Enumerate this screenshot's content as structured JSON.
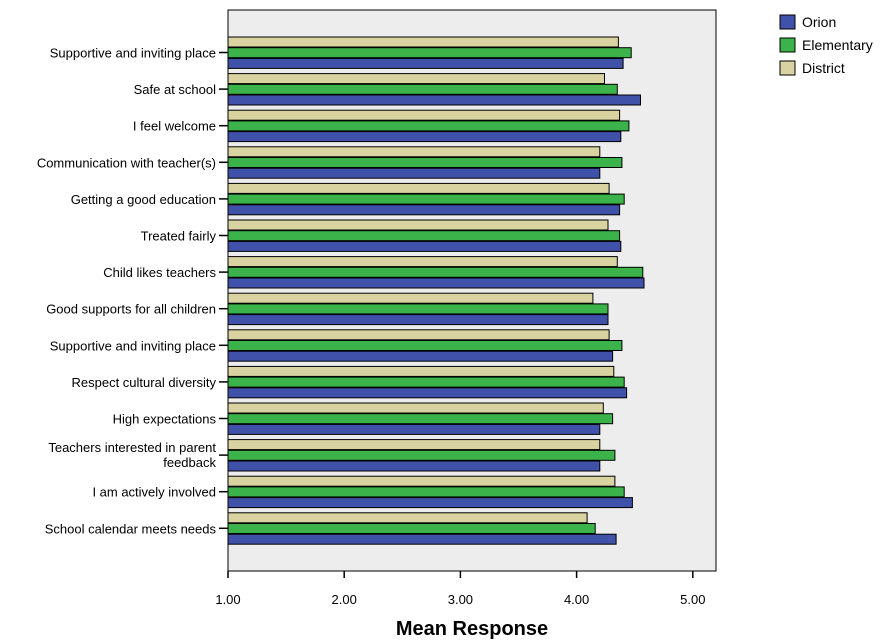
{
  "chart_data": {
    "type": "bar",
    "orientation": "horizontal",
    "title": "",
    "xlabel": "Mean Response",
    "ylabel": "",
    "xlim": [
      1,
      5.2
    ],
    "ticks": [
      "1.00",
      "2.00",
      "3.00",
      "4.00",
      "5.00"
    ],
    "tick_values": [
      1,
      2,
      3,
      4,
      5
    ],
    "grid": false,
    "legend_position": "top-right",
    "background": "#ededed",
    "categories": [
      "Supportive and inviting place",
      "Safe at school",
      "I feel welcome",
      "Communication with teacher(s)",
      "Getting a good education",
      "Treated fairly",
      "Child likes teachers",
      "Good supports for all children",
      "Supportive and inviting place",
      "Respect cultural diversity",
      "High expectations",
      "Teachers interested in parent feedback",
      "I am actively involved",
      "School calendar meets needs"
    ],
    "series": [
      {
        "name": "Orion",
        "color": "#3f51a8",
        "values": [
          4.4,
          4.55,
          4.38,
          4.2,
          4.37,
          4.38,
          4.58,
          4.27,
          4.31,
          4.43,
          4.2,
          4.2,
          4.48,
          4.34
        ]
      },
      {
        "name": "Elementary",
        "color": "#3bb34a",
        "values": [
          4.47,
          4.35,
          4.45,
          4.39,
          4.41,
          4.37,
          4.57,
          4.27,
          4.39,
          4.41,
          4.31,
          4.33,
          4.41,
          4.16
        ]
      },
      {
        "name": "District",
        "color": "#d8d3a1",
        "values": [
          4.36,
          4.24,
          4.37,
          4.2,
          4.28,
          4.27,
          4.35,
          4.14,
          4.28,
          4.32,
          4.23,
          4.2,
          4.33,
          4.09
        ]
      }
    ]
  }
}
